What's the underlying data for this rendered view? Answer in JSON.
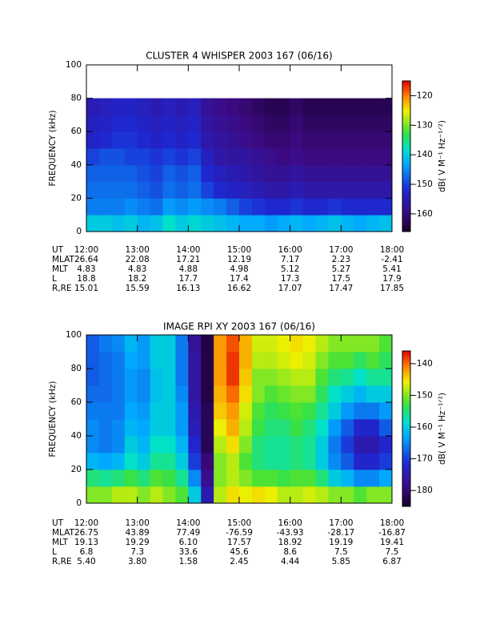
{
  "chart_data": [
    {
      "type": "heatmap",
      "title": "CLUSTER 4 WHISPER 2003 167 (06/16)",
      "ylabel": "FREQUENCY (kHz)",
      "colorbar_label": "dB( V M⁻¹ Hz⁻¹ᐟ²)",
      "xlim": [
        12,
        18
      ],
      "xticks": [
        {
          "value": 12,
          "label": "12:00"
        },
        {
          "value": 13,
          "label": "13:00"
        },
        {
          "value": 14,
          "label": "14:00"
        },
        {
          "value": 15,
          "label": "15:00"
        },
        {
          "value": 16,
          "label": "16:00"
        },
        {
          "value": 17,
          "label": "17:00"
        },
        {
          "value": 18,
          "label": "18:00"
        }
      ],
      "ylim": [
        0,
        100
      ],
      "yticks": [
        0,
        20,
        40,
        60,
        80,
        100
      ],
      "zlim": [
        -166,
        -115
      ],
      "zticks": [
        -120,
        -130,
        -140,
        -150,
        -160
      ],
      "x_edges": [
        12,
        12.25,
        12.5,
        12.75,
        13,
        13.25,
        13.5,
        13.75,
        14,
        14.25,
        14.5,
        14.75,
        15,
        15.25,
        15.5,
        15.75,
        16,
        16.25,
        16.5,
        16.75,
        17,
        17.25,
        17.5,
        17.75,
        18
      ],
      "y_edges": [
        0,
        10,
        20,
        30,
        40,
        50,
        60,
        70,
        80
      ],
      "z": [
        [
          -140,
          -140,
          -141,
          -140,
          -142,
          -141,
          -138,
          -140,
          -139,
          -140,
          -141,
          -142,
          -143,
          -143,
          -144,
          -143,
          -142,
          -143,
          -142,
          -141,
          -142,
          -143,
          -142,
          -141
        ],
        [
          -146,
          -146,
          -146,
          -145,
          -146,
          -147,
          -144,
          -145,
          -144,
          -145,
          -146,
          -148,
          -150,
          -151,
          -152,
          -152,
          -151,
          -152,
          -152,
          -151,
          -152,
          -152,
          -152,
          -152
        ],
        [
          -147,
          -147,
          -147,
          -147,
          -148,
          -149,
          -147,
          -148,
          -147,
          -150,
          -152,
          -153,
          -154,
          -155,
          -156,
          -156,
          -155,
          -156,
          -156,
          -156,
          -156,
          -156,
          -156,
          -156
        ],
        [
          -148,
          -148,
          -148,
          -148,
          -149,
          -150,
          -148,
          -149,
          -148,
          -152,
          -154,
          -155,
          -156,
          -157,
          -158,
          -158,
          -157,
          -158,
          -158,
          -158,
          -158,
          -158,
          -158,
          -158
        ],
        [
          -150,
          -149,
          -149,
          -150,
          -150,
          -151,
          -150,
          -151,
          -150,
          -154,
          -156,
          -157,
          -157,
          -158,
          -159,
          -160,
          -159,
          -160,
          -160,
          -160,
          -160,
          -160,
          -160,
          -160
        ],
        [
          -153,
          -152,
          -151,
          -151,
          -152,
          -153,
          -152,
          -153,
          -152,
          -156,
          -157,
          -158,
          -159,
          -160,
          -161,
          -161,
          -160,
          -161,
          -161,
          -161,
          -161,
          -161,
          -161,
          -161
        ],
        [
          -154,
          -153,
          -152,
          -152,
          -153,
          -154,
          -153,
          -154,
          -153,
          -157,
          -158,
          -159,
          -160,
          -161,
          -162,
          -162,
          -161,
          -162,
          -162,
          -162,
          -162,
          -162,
          -162,
          -162
        ],
        [
          -155,
          -154,
          -153,
          -153,
          -154,
          -155,
          -154,
          -155,
          -154,
          -158,
          -159,
          -160,
          -161,
          -162,
          -163,
          -163,
          -162,
          -163,
          -163,
          -163,
          -163,
          -163,
          -163,
          -163
        ]
      ],
      "ut_label": "UT",
      "ephemeris": [
        {
          "label": "MLAT",
          "values": [
            "26.64",
            "22.08",
            "17.21",
            "12.19",
            "7.17",
            "2.23",
            "-2.41"
          ]
        },
        {
          "label": "MLT",
          "values": [
            "4.83",
            "4.83",
            "4.88",
            "4.98",
            "5.12",
            "5.27",
            "5.41"
          ]
        },
        {
          "label": "L",
          "values": [
            "18.8",
            "18.2",
            "17.7",
            "17.4",
            "17.3",
            "17.5",
            "17.9"
          ]
        },
        {
          "label": "R,RE",
          "values": [
            "15.01",
            "15.59",
            "16.13",
            "16.62",
            "17.07",
            "17.47",
            "17.85"
          ]
        }
      ]
    },
    {
      "type": "heatmap",
      "title": "IMAGE RPI XY 2003 167 (06/16)",
      "ylabel": "FREQUENCY (kHz)",
      "colorbar_label": "dB( V M⁻¹ Hz⁻¹ᐟ²)",
      "xlim": [
        12,
        18
      ],
      "xticks": [
        {
          "value": 12,
          "label": "12:00"
        },
        {
          "value": 13,
          "label": "13:00"
        },
        {
          "value": 14,
          "label": "14:00"
        },
        {
          "value": 15,
          "label": "15:00"
        },
        {
          "value": 16,
          "label": "16:00"
        },
        {
          "value": 17,
          "label": "17:00"
        },
        {
          "value": 18,
          "label": "18:00"
        }
      ],
      "ylim": [
        0,
        100
      ],
      "yticks": [
        0,
        20,
        40,
        60,
        80,
        100
      ],
      "zlim": [
        -185,
        -136
      ],
      "zticks": [
        -140,
        -150,
        -160,
        -170,
        -180
      ],
      "x_edges": [
        12,
        12.25,
        12.5,
        12.75,
        13,
        13.25,
        13.5,
        13.75,
        14,
        14.25,
        14.5,
        14.75,
        15,
        15.25,
        15.5,
        15.75,
        16,
        16.25,
        16.5,
        16.75,
        17,
        17.25,
        17.5,
        17.75,
        18
      ],
      "y_edges": [
        0,
        10,
        20,
        30,
        40,
        50,
        60,
        70,
        80,
        90,
        100
      ],
      "z": [
        [
          -150,
          -150,
          -148,
          -148,
          -150,
          -148,
          -150,
          -152,
          -160,
          -175,
          -148,
          -145,
          -146,
          -145,
          -146,
          -148,
          -148,
          -147,
          -148,
          -150,
          -150,
          -152,
          -150,
          -150
        ],
        [
          -155,
          -156,
          -155,
          -153,
          -155,
          -152,
          -153,
          -156,
          -165,
          -178,
          -150,
          -148,
          -150,
          -152,
          -152,
          -153,
          -152,
          -152,
          -155,
          -160,
          -162,
          -165,
          -165,
          -163
        ],
        [
          -162,
          -163,
          -162,
          -158,
          -160,
          -156,
          -156,
          -160,
          -170,
          -180,
          -150,
          -148,
          -152,
          -155,
          -156,
          -156,
          -155,
          -156,
          -160,
          -165,
          -168,
          -172,
          -172,
          -170
        ],
        [
          -165,
          -166,
          -165,
          -160,
          -162,
          -158,
          -158,
          -162,
          -172,
          -182,
          -148,
          -145,
          -150,
          -155,
          -156,
          -156,
          -155,
          -156,
          -160,
          -166,
          -170,
          -175,
          -175,
          -172
        ],
        [
          -165,
          -166,
          -165,
          -162,
          -163,
          -160,
          -160,
          -164,
          -174,
          -182,
          -146,
          -143,
          -148,
          -153,
          -155,
          -155,
          -153,
          -155,
          -158,
          -164,
          -168,
          -172,
          -172,
          -168
        ],
        [
          -166,
          -166,
          -166,
          -163,
          -164,
          -160,
          -160,
          -164,
          -175,
          -182,
          -144,
          -142,
          -147,
          -152,
          -154,
          -153,
          -152,
          -153,
          -156,
          -160,
          -164,
          -166,
          -166,
          -164
        ],
        [
          -167,
          -167,
          -166,
          -164,
          -165,
          -161,
          -160,
          -165,
          -176,
          -183,
          -143,
          -140,
          -145,
          -150,
          -152,
          -151,
          -150,
          -150,
          -154,
          -158,
          -160,
          -162,
          -160,
          -160
        ],
        [
          -168,
          -167,
          -166,
          -164,
          -165,
          -161,
          -160,
          -166,
          -176,
          -183,
          -142,
          -138,
          -144,
          -150,
          -150,
          -149,
          -148,
          -148,
          -152,
          -155,
          -156,
          -158,
          -156,
          -156
        ],
        [
          -168,
          -167,
          -166,
          -163,
          -164,
          -160,
          -160,
          -166,
          -176,
          -183,
          -142,
          -138,
          -143,
          -148,
          -148,
          -147,
          -146,
          -147,
          -150,
          -152,
          -152,
          -154,
          -152,
          -154
        ],
        [
          -168,
          -166,
          -165,
          -162,
          -164,
          -160,
          -160,
          -166,
          -177,
          -183,
          -142,
          -139,
          -143,
          -147,
          -147,
          -146,
          -145,
          -146,
          -148,
          -150,
          -150,
          -150,
          -150,
          -152
        ]
      ],
      "ut_label": "UT",
      "ephemeris": [
        {
          "label": "MLAT",
          "values": [
            "26.75",
            "43.89",
            "77.49",
            "-76.59",
            "-43.93",
            "-28.17",
            "-16.87"
          ]
        },
        {
          "label": "MLT",
          "values": [
            "19.13",
            "19.29",
            "6.10",
            "17.57",
            "18.92",
            "19.19",
            "19.41"
          ]
        },
        {
          "label": "L",
          "values": [
            "6.8",
            "7.3",
            "33.6",
            "45.6",
            "8.6",
            "7.5",
            "7.5"
          ]
        },
        {
          "label": "R,RE",
          "values": [
            "5.40",
            "3.80",
            "1.58",
            "2.45",
            "4.44",
            "5.85",
            "6.87"
          ]
        }
      ]
    }
  ]
}
